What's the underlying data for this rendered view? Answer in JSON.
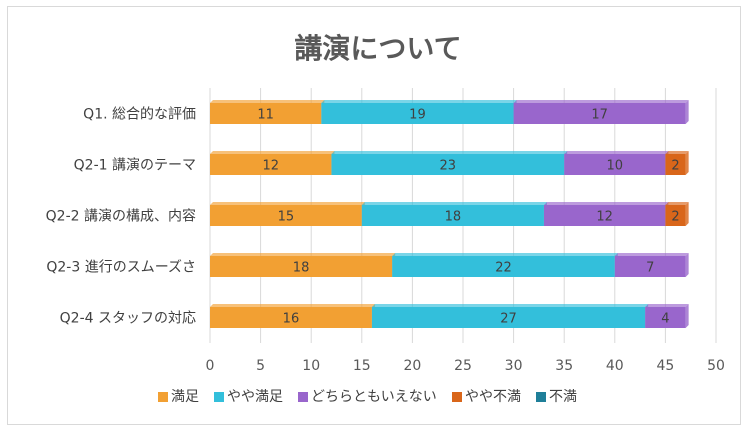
{
  "chart_data": {
    "type": "bar",
    "orientation": "horizontal",
    "stacked": true,
    "title": "講演について",
    "categories": [
      "Q1. 総合的な評価",
      "Q2-1 講演のテーマ",
      "Q2-2 講演の構成、内容",
      "Q2-3 進行のスムーズさ",
      "Q2-4 スタッフの対応"
    ],
    "series": [
      {
        "name": "満足",
        "color": "#F2A033",
        "values": [
          11,
          12,
          15,
          18,
          16
        ]
      },
      {
        "name": "やや満足",
        "color": "#33BFDB",
        "values": [
          19,
          23,
          18,
          22,
          27
        ]
      },
      {
        "name": "どちらともいえない",
        "color": "#9966CC",
        "values": [
          17,
          10,
          12,
          7,
          4
        ]
      },
      {
        "name": "やや不満",
        "color": "#D9661A",
        "values": [
          0,
          2,
          2,
          0,
          0
        ]
      },
      {
        "name": "不満",
        "color": "#1F7F99",
        "values": [
          0,
          0,
          0,
          0,
          0
        ]
      }
    ],
    "xlim": [
      0,
      50
    ],
    "xticks": [
      0,
      5,
      10,
      15,
      20,
      25,
      30,
      35,
      40,
      45,
      50
    ],
    "grid": "vertical",
    "legend_position": "bottom"
  }
}
